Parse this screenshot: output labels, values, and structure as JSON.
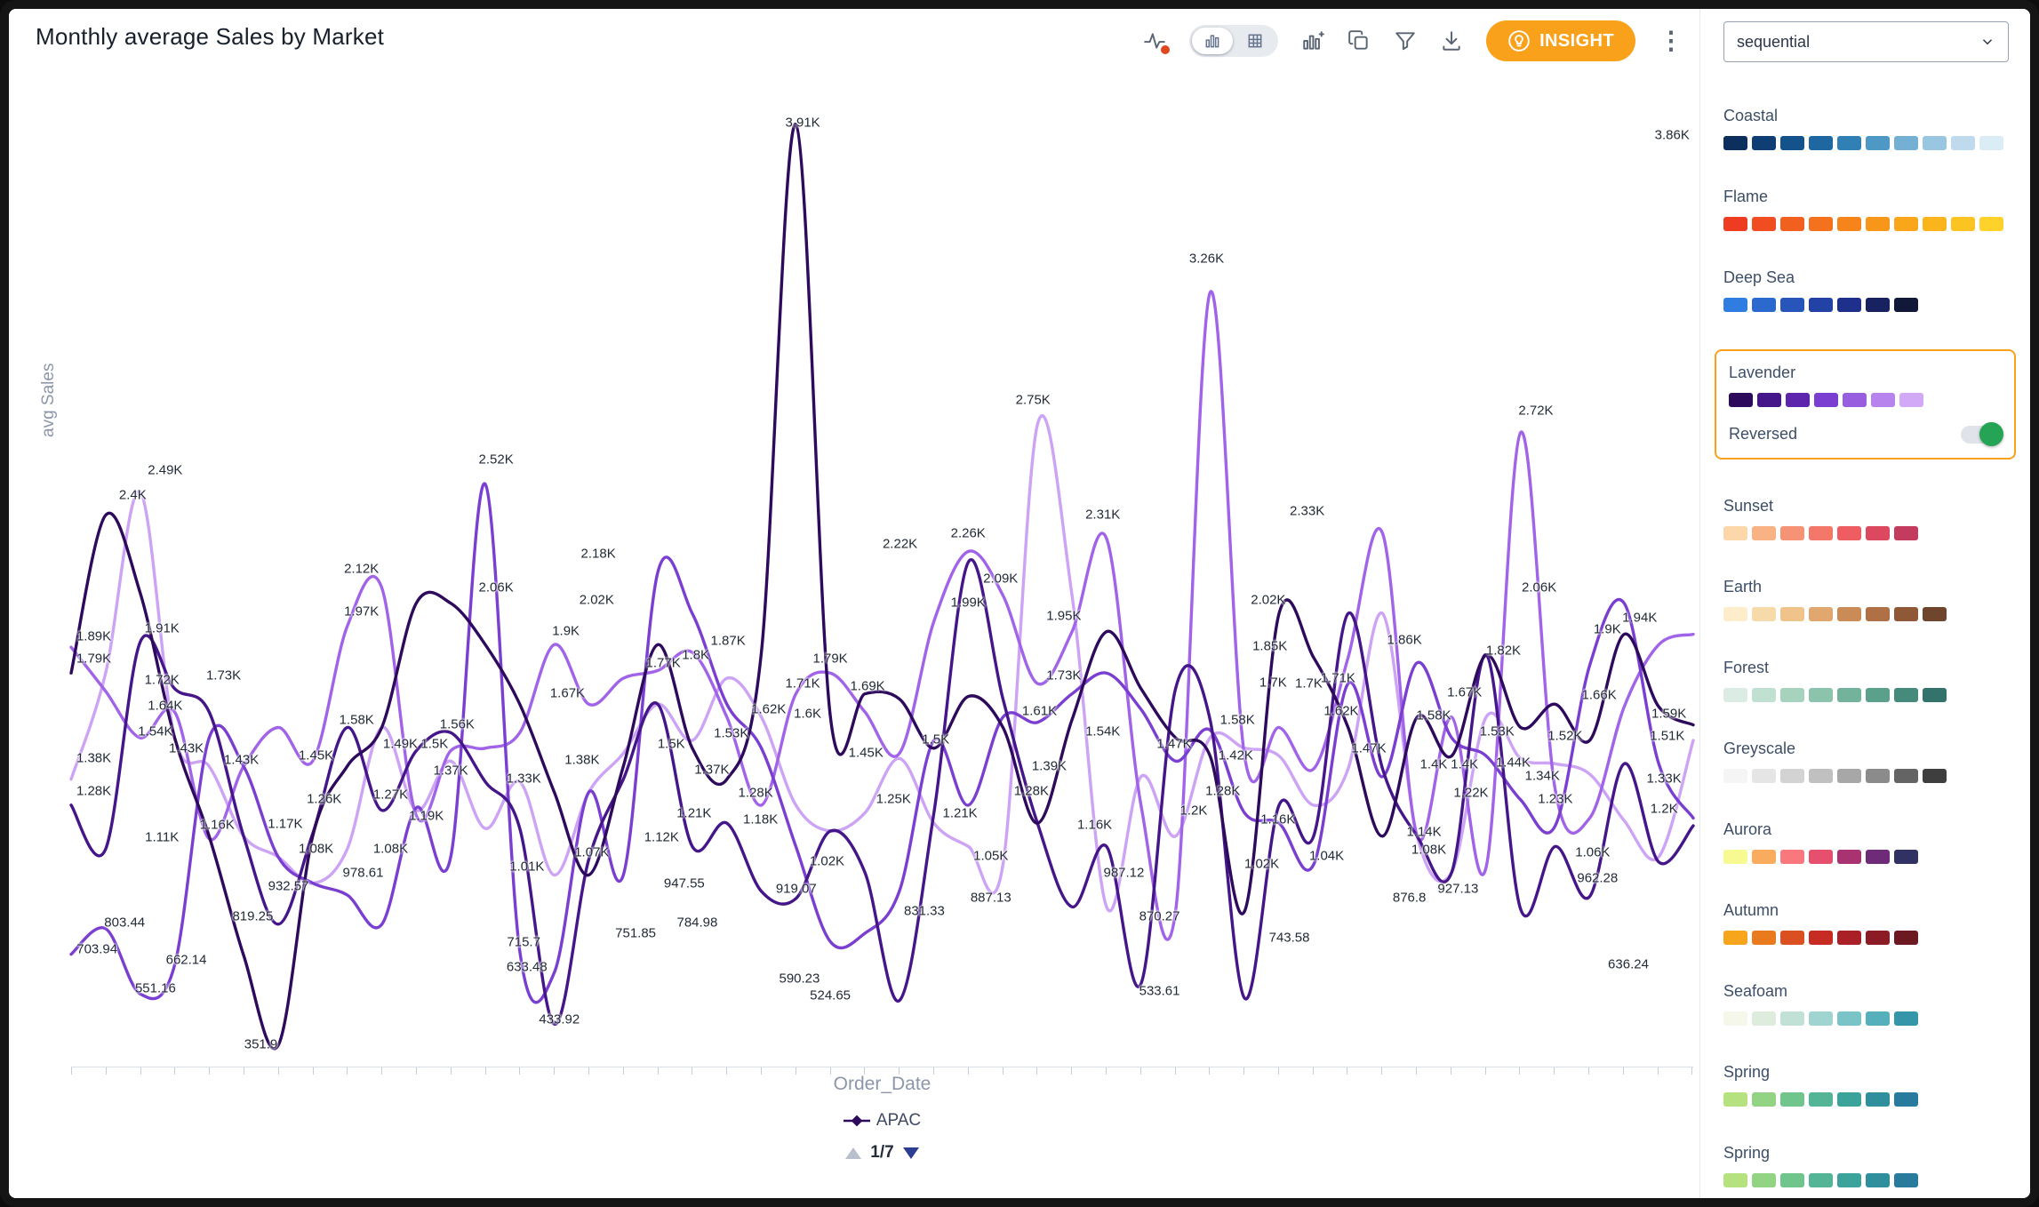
{
  "window": {
    "title": "Monthly average Sales by Market"
  },
  "toolbar": {
    "insight_label": "INSIGHT",
    "insight_color": "#f9a11b",
    "icons": [
      {
        "name": "analyze",
        "badge": true
      },
      {
        "name": "chart-view",
        "selected": true
      },
      {
        "name": "table-view",
        "selected": false
      },
      {
        "name": "change-visualization"
      },
      {
        "name": "copy"
      },
      {
        "name": "filter"
      },
      {
        "name": "download"
      },
      {
        "name": "more-menu"
      }
    ]
  },
  "side_panel": {
    "palette_type": "sequential",
    "reversed_label": "Reversed",
    "reversed_on": true,
    "selected_palette": "Lavender",
    "accent": "#f9a11b",
    "palettes": [
      {
        "name": "Coastal",
        "colors": [
          "#0d2f5e",
          "#0f3e74",
          "#14528b",
          "#1e67a1",
          "#3180b5",
          "#4e98c6",
          "#73b0d4",
          "#99c7e1",
          "#bedaec",
          "#daecf5"
        ]
      },
      {
        "name": "Flame",
        "colors": [
          "#ee3c23",
          "#f04e21",
          "#f2601f",
          "#f4721d",
          "#f6841b",
          "#f79619",
          "#f9a61a",
          "#fab51d",
          "#fcc422",
          "#fdd32b"
        ]
      },
      {
        "name": "Deep Sea",
        "colors": [
          "#2f7de1",
          "#2b69ce",
          "#2755ba",
          "#2342a5",
          "#1e308b",
          "#182260",
          "#111838"
        ]
      },
      {
        "name": "Lavender",
        "selected": true,
        "colors": [
          "#2d0a5c",
          "#451689",
          "#5c25ab",
          "#7a3fd1",
          "#985ee0",
          "#b783ed",
          "#d2a9f6"
        ]
      },
      {
        "name": "Sunset",
        "colors": [
          "#fbd7aa",
          "#f9b284",
          "#f69374",
          "#f37869",
          "#ee5d62",
          "#dd4861",
          "#c33b5f"
        ]
      },
      {
        "name": "Earth",
        "colors": [
          "#fdedca",
          "#f7daa9",
          "#efc38a",
          "#e0a86e",
          "#ca8b56",
          "#ae7044",
          "#8f5938",
          "#6f452d"
        ]
      },
      {
        "name": "Forest",
        "colors": [
          "#daece3",
          "#c0e0d1",
          "#a6d2be",
          "#8cc3ac",
          "#73b39b",
          "#5ba08a",
          "#468a7b",
          "#34736c"
        ]
      },
      {
        "name": "Greyscale",
        "colors": [
          "#f5f5f5",
          "#e5e5e5",
          "#d3d3d3",
          "#c0c0c0",
          "#a7a7a7",
          "#8b8b8b",
          "#646464",
          "#3e3e3e"
        ]
      },
      {
        "name": "Aurora",
        "colors": [
          "#f7fa90",
          "#f9ac5d",
          "#f8787e",
          "#e64f6d",
          "#a93370",
          "#6e2b78",
          "#323164"
        ]
      },
      {
        "name": "Autumn",
        "colors": [
          "#f6a51d",
          "#e97b1e",
          "#db5020",
          "#c62c24",
          "#a92026",
          "#8b1b24",
          "#6c1921"
        ]
      },
      {
        "name": "Seafoam",
        "colors": [
          "#f4f7e9",
          "#ddecdd",
          "#c1e1d7",
          "#9fd4d0",
          "#7ac4c7",
          "#55b0bb",
          "#3696a9"
        ]
      },
      {
        "name": "Spring",
        "colors": [
          "#b6e17f",
          "#93d484",
          "#70c58c",
          "#53b595",
          "#3ca39b",
          "#2f8f9d",
          "#287b9c"
        ]
      },
      {
        "name": "Spring",
        "colors": [
          "#b6e17f",
          "#93d484",
          "#70c58c",
          "#53b595",
          "#3ca39b",
          "#2f8f9d",
          "#287b9c"
        ]
      }
    ]
  },
  "chart_data": {
    "type": "line",
    "title": "Monthly average Sales by Market",
    "xlabel": "Order_Date",
    "ylabel": "avg Sales",
    "ylim": [
      270,
      4150
    ],
    "x_tick_count": 48,
    "grid": false,
    "legend": {
      "label": "APAC",
      "page": "1/7",
      "marker_color": "#2d0a5c"
    },
    "series": [
      {
        "name": "APAC",
        "color": "#2d0a5c",
        "values": [
          1790,
          2400,
          2100,
          1540,
          1160,
          700,
          352,
          1160,
          1430,
          1580,
          2060,
          2060,
          1900,
          1670,
          1330,
          1010,
          1430,
          1900,
          1500,
          1380,
          1870,
          3910,
          1620,
          1710,
          1690,
          1500,
          1700,
          1580,
          1210,
          1610,
          1950,
          1730,
          1540,
          1470,
          870,
          2020,
          1850,
          1580,
          1160,
          1620,
          1470,
          1860,
          1580,
          1670,
          1530,
          1940,
          1660,
          1590
        ]
      },
      {
        "name": "",
        "color": "#451689",
        "values": [
          1280,
          1110,
          1910,
          1730,
          1640,
          1160,
          820,
          1170,
          1580,
          1260,
          1490,
          1560,
          1370,
          1190,
          434,
          1070,
          1380,
          1670,
          1120,
          1210,
          947,
          919,
          1180,
          1020,
          525,
          1250,
          2220,
          1690,
          1210,
          887,
          1120,
          590,
          1730,
          1610,
          534,
          1280,
          1160,
          2020,
          1420,
          1160,
          1020,
          1860,
          877,
          1120,
          927,
          1440,
          1060,
          1200
        ]
      },
      {
        "name": "",
        "color": "#7a3fd1",
        "values": [
          704,
          803,
          551,
          662,
          1540,
          1430,
          1080,
          979,
          933,
          819,
          1270,
          1080,
          2520,
          716,
          633,
          1330,
          1010,
          2180,
          2020,
          1670,
          1500,
          1120,
          752,
          785,
          948,
          1530,
          1280,
          1620,
          1600,
          1710,
          1790,
          1650,
          1450,
          1570,
          1250,
          1210,
          1050,
          1750,
          1390,
          1830,
          1540,
          1470,
          1300,
          1200,
          1820,
          2060,
          1440,
          1230
        ]
      },
      {
        "name": "",
        "color": "#a163e8",
        "values": [
          1890,
          1720,
          1540,
          1640,
          1150,
          1430,
          1580,
          1450,
          1970,
          2120,
          1240,
          1490,
          1500,
          1560,
          1900,
          1670,
          1770,
          1800,
          1870,
          1620,
          1280,
          1710,
          1790,
          1640,
          1480,
          1990,
          2260,
          2090,
          1750,
          1950,
          2310,
          1280,
          870,
          3260,
          1470,
          1580,
          1420,
          1850,
          2330,
          1160,
          1620,
          1040,
          2720,
          1340,
          1230,
          1660,
          1900,
          1940
        ]
      },
      {
        "name": "",
        "color": "#cda4f5",
        "values": [
          1380,
          1790,
          2490,
          1540,
          1430,
          1160,
          1080,
          978,
          1110,
          1580,
          1260,
          1450,
          1190,
          1370,
          1010,
          1330,
          1480,
          1670,
          1530,
          1770,
          1620,
          1280,
          1180,
          1250,
          1460,
          1210,
          1120,
          1050,
          2750,
          2090,
          887,
          1390,
          1160,
          1540,
          1500,
          1470,
          1280,
          1420,
          2020,
          1160,
          1020,
          1620,
          1460,
          1440,
          1400,
          1220,
          1080,
          1530
        ]
      }
    ],
    "labels": [
      {
        "t": "3.91K",
        "x": 45.1,
        "y": 6.0
      },
      {
        "t": "3.86K",
        "x": 98.7,
        "y": 7.3
      },
      {
        "t": "3.26K",
        "x": 70.0,
        "y": 19.6
      },
      {
        "t": "2.75K",
        "x": 59.3,
        "y": 33.6
      },
      {
        "t": "2.72K",
        "x": 90.3,
        "y": 34.7
      },
      {
        "t": "2.52K",
        "x": 26.2,
        "y": 39.6
      },
      {
        "t": "2.49K",
        "x": 5.8,
        "y": 40.6
      },
      {
        "t": "2.4K",
        "x": 3.8,
        "y": 43.1
      },
      {
        "t": "2.33K",
        "x": 76.2,
        "y": 44.7
      },
      {
        "t": "2.31K",
        "x": 63.6,
        "y": 45.0
      },
      {
        "t": "2.26K",
        "x": 55.3,
        "y": 46.9
      },
      {
        "t": "2.22K",
        "x": 51.1,
        "y": 48.0
      },
      {
        "t": "2.18K",
        "x": 32.5,
        "y": 48.9
      },
      {
        "t": "2.12K",
        "x": 17.9,
        "y": 50.4
      },
      {
        "t": "2.09K",
        "x": 57.3,
        "y": 51.4
      },
      {
        "t": "2.06K",
        "x": 26.2,
        "y": 52.3
      },
      {
        "t": "2.06K",
        "x": 90.5,
        "y": 52.3
      },
      {
        "t": "2.02K",
        "x": 32.4,
        "y": 53.5
      },
      {
        "t": "2.02K",
        "x": 73.8,
        "y": 53.5
      },
      {
        "t": "1.99K",
        "x": 55.3,
        "y": 53.8
      },
      {
        "t": "1.97K",
        "x": 17.9,
        "y": 54.7
      },
      {
        "t": "1.95K",
        "x": 61.2,
        "y": 55.1
      },
      {
        "t": "1.94K",
        "x": 96.7,
        "y": 55.3
      },
      {
        "t": "1.91K",
        "x": 5.6,
        "y": 56.4
      },
      {
        "t": "1.9K",
        "x": 30.5,
        "y": 56.6
      },
      {
        "t": "1.9K",
        "x": 94.7,
        "y": 56.5
      },
      {
        "t": "1.89K",
        "x": 1.4,
        "y": 57.2
      },
      {
        "t": "1.87K",
        "x": 40.5,
        "y": 57.6
      },
      {
        "t": "1.86K",
        "x": 82.2,
        "y": 57.5
      },
      {
        "t": "1.85K",
        "x": 73.9,
        "y": 58.1
      },
      {
        "t": "1.82K",
        "x": 88.3,
        "y": 58.6
      },
      {
        "t": "1.8K",
        "x": 38.5,
        "y": 59.0
      },
      {
        "t": "1.79K",
        "x": 1.4,
        "y": 59.4
      },
      {
        "t": "1.79K",
        "x": 46.8,
        "y": 59.4
      },
      {
        "t": "1.77K",
        "x": 36.5,
        "y": 59.8
      },
      {
        "t": "1.73K",
        "x": 9.4,
        "y": 61.1
      },
      {
        "t": "1.73K",
        "x": 61.2,
        "y": 61.1
      },
      {
        "t": "1.72K",
        "x": 5.6,
        "y": 61.5
      },
      {
        "t": "1.71K",
        "x": 45.1,
        "y": 61.9
      },
      {
        "t": "1.71K",
        "x": 78.1,
        "y": 61.3
      },
      {
        "t": "1.7K",
        "x": 74.1,
        "y": 61.8
      },
      {
        "t": "1.7K",
        "x": 76.3,
        "y": 61.9
      },
      {
        "t": "1.69K",
        "x": 49.1,
        "y": 62.1
      },
      {
        "t": "1.67K",
        "x": 30.6,
        "y": 62.8
      },
      {
        "t": "1.67K",
        "x": 85.9,
        "y": 62.7
      },
      {
        "t": "1.66K",
        "x": 94.2,
        "y": 63.0
      },
      {
        "t": "1.64K",
        "x": 5.8,
        "y": 64.1
      },
      {
        "t": "1.62K",
        "x": 43.0,
        "y": 64.4
      },
      {
        "t": "1.62K",
        "x": 78.3,
        "y": 64.6
      },
      {
        "t": "1.61K",
        "x": 59.7,
        "y": 64.6
      },
      {
        "t": "1.6K",
        "x": 45.4,
        "y": 64.9
      },
      {
        "t": "1.59K",
        "x": 98.5,
        "y": 64.9
      },
      {
        "t": "1.58K",
        "x": 17.6,
        "y": 65.5
      },
      {
        "t": "1.58K",
        "x": 71.9,
        "y": 65.5
      },
      {
        "t": "1.58K",
        "x": 84.0,
        "y": 65.0
      },
      {
        "t": "1.56K",
        "x": 23.8,
        "y": 65.9
      },
      {
        "t": "1.54K",
        "x": 5.2,
        "y": 66.6
      },
      {
        "t": "1.54K",
        "x": 63.6,
        "y": 66.6
      },
      {
        "t": "1.53K",
        "x": 40.7,
        "y": 66.8
      },
      {
        "t": "1.53K",
        "x": 87.9,
        "y": 66.6
      },
      {
        "t": "1.52K",
        "x": 92.1,
        "y": 67.1
      },
      {
        "t": "1.51K",
        "x": 98.4,
        "y": 67.1
      },
      {
        "t": "1.5K",
        "x": 22.4,
        "y": 67.9
      },
      {
        "t": "1.5K",
        "x": 37.0,
        "y": 67.9
      },
      {
        "t": "1.5K",
        "x": 53.3,
        "y": 67.4
      },
      {
        "t": "1.49K",
        "x": 20.3,
        "y": 67.9
      },
      {
        "t": "1.47K",
        "x": 68.0,
        "y": 67.9
      },
      {
        "t": "1.47K",
        "x": 80.0,
        "y": 68.3
      },
      {
        "t": "1.45K",
        "x": 15.1,
        "y": 69.0
      },
      {
        "t": "1.45K",
        "x": 49.0,
        "y": 68.8
      },
      {
        "t": "1.44K",
        "x": 88.9,
        "y": 69.7
      },
      {
        "t": "1.43K",
        "x": 7.1,
        "y": 68.3
      },
      {
        "t": "1.43K",
        "x": 10.5,
        "y": 69.5
      },
      {
        "t": "1.42K",
        "x": 71.8,
        "y": 69.0
      },
      {
        "t": "1.4K",
        "x": 84.0,
        "y": 69.9
      },
      {
        "t": "1.4K",
        "x": 85.9,
        "y": 69.9
      },
      {
        "t": "1.39K",
        "x": 60.3,
        "y": 70.1
      },
      {
        "t": "1.38K",
        "x": 1.4,
        "y": 69.3
      },
      {
        "t": "1.38K",
        "x": 31.5,
        "y": 69.5
      },
      {
        "t": "1.37K",
        "x": 23.4,
        "y": 70.5
      },
      {
        "t": "1.37K",
        "x": 39.5,
        "y": 70.4
      },
      {
        "t": "1.34K",
        "x": 90.7,
        "y": 71.1
      },
      {
        "t": "1.33K",
        "x": 27.9,
        "y": 71.3
      },
      {
        "t": "1.33K",
        "x": 98.2,
        "y": 71.3
      },
      {
        "t": "1.28K",
        "x": 1.4,
        "y": 72.6
      },
      {
        "t": "1.28K",
        "x": 42.2,
        "y": 72.7
      },
      {
        "t": "1.28K",
        "x": 59.2,
        "y": 72.6
      },
      {
        "t": "1.28K",
        "x": 71.0,
        "y": 72.6
      },
      {
        "t": "1.27K",
        "x": 19.7,
        "y": 72.9
      },
      {
        "t": "1.26K",
        "x": 15.6,
        "y": 73.4
      },
      {
        "t": "1.25K",
        "x": 50.7,
        "y": 73.4
      },
      {
        "t": "1.23K",
        "x": 91.5,
        "y": 73.4
      },
      {
        "t": "1.22K",
        "x": 86.3,
        "y": 72.7
      },
      {
        "t": "1.21K",
        "x": 38.4,
        "y": 74.8
      },
      {
        "t": "1.21K",
        "x": 54.8,
        "y": 74.8
      },
      {
        "t": "1.2K",
        "x": 69.2,
        "y": 74.5
      },
      {
        "t": "1.2K",
        "x": 98.2,
        "y": 74.3
      },
      {
        "t": "1.19K",
        "x": 21.9,
        "y": 75.0
      },
      {
        "t": "1.18K",
        "x": 42.5,
        "y": 75.4
      },
      {
        "t": "1.17K",
        "x": 13.2,
        "y": 75.8
      },
      {
        "t": "1.16K",
        "x": 9.0,
        "y": 75.9
      },
      {
        "t": "1.16K",
        "x": 63.1,
        "y": 75.9
      },
      {
        "t": "1.16K",
        "x": 74.4,
        "y": 75.4
      },
      {
        "t": "1.14K",
        "x": 83.4,
        "y": 76.6
      },
      {
        "t": "1.12K",
        "x": 36.4,
        "y": 77.2
      },
      {
        "t": "1.11K",
        "x": 5.6,
        "y": 77.2
      },
      {
        "t": "1.08K",
        "x": 15.1,
        "y": 78.3
      },
      {
        "t": "1.08K",
        "x": 19.7,
        "y": 78.3
      },
      {
        "t": "1.08K",
        "x": 83.7,
        "y": 78.4
      },
      {
        "t": "1.07K",
        "x": 32.1,
        "y": 78.7
      },
      {
        "t": "1.06K",
        "x": 93.8,
        "y": 78.7
      },
      {
        "t": "1.05K",
        "x": 56.7,
        "y": 79.0
      },
      {
        "t": "1.04K",
        "x": 77.4,
        "y": 79.0
      },
      {
        "t": "1.02K",
        "x": 46.6,
        "y": 79.6
      },
      {
        "t": "1.02K",
        "x": 73.4,
        "y": 79.8
      },
      {
        "t": "1.01K",
        "x": 28.1,
        "y": 80.1
      },
      {
        "t": "987.12",
        "x": 64.9,
        "y": 80.7
      },
      {
        "t": "978.61",
        "x": 18.0,
        "y": 80.7
      },
      {
        "t": "962.28",
        "x": 94.1,
        "y": 81.2
      },
      {
        "t": "947.55",
        "x": 37.8,
        "y": 81.8
      },
      {
        "t": "932.57",
        "x": 13.4,
        "y": 82.0
      },
      {
        "t": "927.13",
        "x": 85.5,
        "y": 82.3
      },
      {
        "t": "919.07",
        "x": 44.7,
        "y": 82.3
      },
      {
        "t": "887.13",
        "x": 56.7,
        "y": 83.2
      },
      {
        "t": "876.8",
        "x": 82.5,
        "y": 83.2
      },
      {
        "t": "870.27",
        "x": 67.1,
        "y": 85.0
      },
      {
        "t": "831.33",
        "x": 52.6,
        "y": 84.5
      },
      {
        "t": "819.25",
        "x": 11.2,
        "y": 85.0
      },
      {
        "t": "803.44",
        "x": 3.3,
        "y": 85.7
      },
      {
        "t": "784.98",
        "x": 38.6,
        "y": 85.7
      },
      {
        "t": "751.85",
        "x": 34.8,
        "y": 86.7
      },
      {
        "t": "743.58",
        "x": 75.1,
        "y": 87.2
      },
      {
        "t": "715.7",
        "x": 27.9,
        "y": 87.6
      },
      {
        "t": "703.94",
        "x": 1.6,
        "y": 88.3
      },
      {
        "t": "662.14",
        "x": 7.1,
        "y": 89.4
      },
      {
        "t": "636.24",
        "x": 96.0,
        "y": 89.8
      },
      {
        "t": "633.48",
        "x": 28.1,
        "y": 90.1
      },
      {
        "t": "590.23",
        "x": 44.9,
        "y": 91.2
      },
      {
        "t": "551.16",
        "x": 5.2,
        "y": 92.2
      },
      {
        "t": "533.61",
        "x": 67.1,
        "y": 92.5
      },
      {
        "t": "524.65",
        "x": 46.8,
        "y": 92.9
      },
      {
        "t": "433.92",
        "x": 30.1,
        "y": 95.3
      },
      {
        "t": "351.9",
        "x": 11.7,
        "y": 97.8
      }
    ]
  }
}
